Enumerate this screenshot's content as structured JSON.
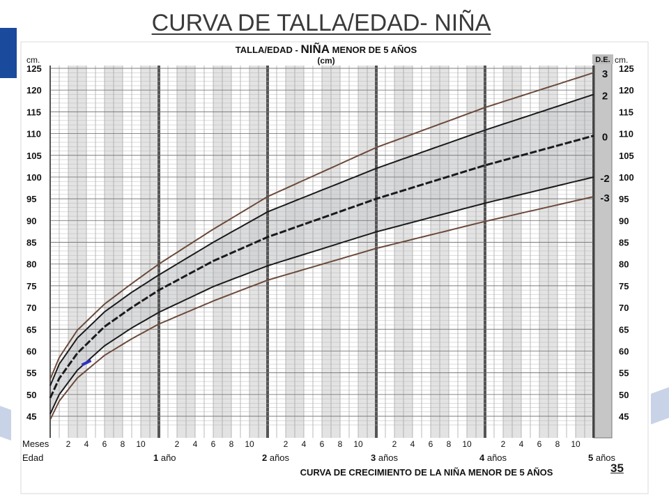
{
  "slide": {
    "title": "CURVA DE TALLA/EDAD- NIÑA",
    "page_number": "35"
  },
  "chart_data": {
    "type": "line",
    "title": "TALLA/EDAD - NIÑA MENOR DE 5 AÑOS",
    "title_parts": [
      "TALLA/EDAD - ",
      "NIÑA",
      " MENOR DE 5 AÑOS"
    ],
    "subtitle": "(cm)",
    "xlabel": "CURVA DE CRECIMIENTO DE LA NIÑA MENOR DE 5 AÑOS",
    "ylabel_left": "cm.",
    "ylabel_right": "cm.",
    "sd_label": "D.E.",
    "x_unit": "months",
    "xlim": [
      0,
      60
    ],
    "ylim": [
      40,
      125
    ],
    "y_ticks": [
      125,
      120,
      115,
      110,
      105,
      100,
      95,
      90,
      85,
      80,
      75,
      70,
      65,
      60,
      55,
      50,
      45
    ],
    "month_row_label": "Meses",
    "age_row_label": "Edad",
    "month_ticks": [
      "2",
      "4",
      "6",
      "8",
      "10"
    ],
    "age_labels": [
      "1 año",
      "2 años",
      "3 años",
      "4 años",
      "5 años"
    ],
    "grid": true,
    "series": [
      {
        "name": "3",
        "color": "#6b4a3a",
        "points": [
          [
            0,
            53.5
          ],
          [
            1,
            58.5
          ],
          [
            3,
            64.8
          ],
          [
            6,
            70.8
          ],
          [
            9,
            75.5
          ],
          [
            12,
            80.0
          ],
          [
            18,
            88.0
          ],
          [
            24,
            95.5
          ],
          [
            36,
            106.8
          ],
          [
            48,
            116.0
          ],
          [
            60,
            124.0
          ]
        ]
      },
      {
        "name": "2",
        "color": "#1a1a1a",
        "points": [
          [
            0,
            52.0
          ],
          [
            1,
            57.0
          ],
          [
            3,
            63.0
          ],
          [
            6,
            69.0
          ],
          [
            9,
            73.5
          ],
          [
            12,
            77.5
          ],
          [
            18,
            85.0
          ],
          [
            24,
            92.0
          ],
          [
            36,
            102.0
          ],
          [
            48,
            110.8
          ],
          [
            60,
            119.0
          ]
        ]
      },
      {
        "name": "0",
        "color": "#1a1a1a",
        "dashed": true,
        "points": [
          [
            0,
            49.2
          ],
          [
            1,
            53.7
          ],
          [
            3,
            59.5
          ],
          [
            6,
            65.6
          ],
          [
            9,
            70.0
          ],
          [
            12,
            74.0
          ],
          [
            18,
            80.7
          ],
          [
            24,
            86.2
          ],
          [
            36,
            95.0
          ],
          [
            48,
            102.7
          ],
          [
            60,
            109.5
          ]
        ]
      },
      {
        "name": "-2",
        "color": "#1a1a1a",
        "points": [
          [
            0,
            45.5
          ],
          [
            1,
            50.0
          ],
          [
            3,
            55.6
          ],
          [
            6,
            61.2
          ],
          [
            9,
            65.3
          ],
          [
            12,
            68.9
          ],
          [
            18,
            74.8
          ],
          [
            24,
            79.6
          ],
          [
            36,
            87.4
          ],
          [
            48,
            94.0
          ],
          [
            60,
            100.0
          ]
        ]
      },
      {
        "name": "-3",
        "color": "#6b4a3a",
        "points": [
          [
            0,
            44.2
          ],
          [
            1,
            48.5
          ],
          [
            3,
            53.8
          ],
          [
            6,
            59.0
          ],
          [
            9,
            62.8
          ],
          [
            12,
            66.2
          ],
          [
            18,
            71.5
          ],
          [
            24,
            76.3
          ],
          [
            36,
            83.6
          ],
          [
            48,
            89.8
          ],
          [
            60,
            95.5
          ]
        ]
      }
    ],
    "marker": {
      "points": [
        [
          3.5,
          56.8
        ],
        [
          4.5,
          57.8
        ]
      ],
      "color": "#3030c0"
    },
    "shaded_band": [
      "2",
      "-2"
    ]
  }
}
